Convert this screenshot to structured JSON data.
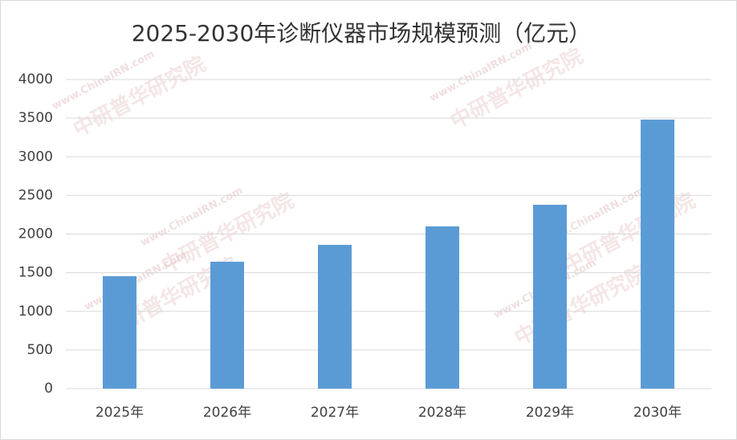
{
  "chart_data": {
    "type": "bar",
    "title": "2025-2030年诊断仪器市场规模预测（亿元）",
    "categories": [
      "2025年",
      "2026年",
      "2027年",
      "2028年",
      "2029年",
      "2030年"
    ],
    "values": [
      1455,
      1642,
      1860,
      2099,
      2379,
      3481
    ],
    "color": "#5b9bd5",
    "ylim": [
      0,
      4000
    ],
    "yticks": [
      0,
      500,
      1000,
      1500,
      2000,
      2500,
      3000,
      3500,
      4000
    ],
    "grid": true,
    "watermark": {
      "site": "www.ChinaIRN.com",
      "name": "中研普华研究院"
    }
  }
}
